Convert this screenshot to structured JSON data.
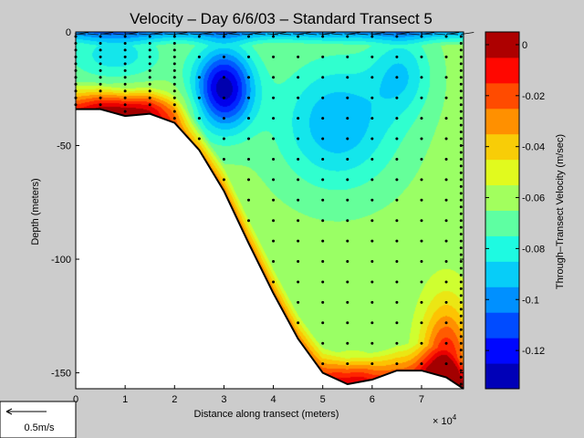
{
  "chart_data": {
    "type": "heatmap",
    "title": "Velocity – Day 6/6/03 – Standard Transect 5",
    "xlabel": "Distance along transect (meters)",
    "x_multiplier": "× 10",
    "x_multiplier_exp": "4",
    "ylabel": "Depth (meters)",
    "colorbar_label": "Through–Transect Velocity (m/sec)",
    "xlim": [
      0,
      7.85
    ],
    "ylim": [
      -157,
      0
    ],
    "xticks": [
      {
        "v": 0,
        "label": "0"
      },
      {
        "v": 1,
        "label": "1"
      },
      {
        "v": 2,
        "label": "2"
      },
      {
        "v": 3,
        "label": "3"
      },
      {
        "v": 4,
        "label": "4"
      },
      {
        "v": 5,
        "label": "5"
      },
      {
        "v": 6,
        "label": "6"
      },
      {
        "v": 7,
        "label": "7"
      }
    ],
    "yticks": [
      {
        "v": 0,
        "label": "0"
      },
      {
        "v": -50,
        "label": "-50"
      },
      {
        "v": -100,
        "label": "-100"
      },
      {
        "v": -150,
        "label": "-150"
      }
    ],
    "clim": [
      -0.135,
      0.005
    ],
    "colorbar_ticks": [
      {
        "v": 0,
        "label": "0"
      },
      {
        "v": -0.02,
        "label": "-0.02"
      },
      {
        "v": -0.04,
        "label": "-0.04"
      },
      {
        "v": -0.06,
        "label": "-0.06"
      },
      {
        "v": -0.08,
        "label": "-0.08"
      },
      {
        "v": -0.1,
        "label": "-0.1"
      },
      {
        "v": -0.12,
        "label": "-0.12"
      }
    ],
    "colormap": [
      "#00008f",
      "#0000ff",
      "#0060ff",
      "#00bfff",
      "#20ffdf",
      "#80ff80",
      "#dfff20",
      "#ffbf00",
      "#ff6000",
      "#ff0000",
      "#800000"
    ],
    "bottom_profile": [
      [
        0,
        -34
      ],
      [
        0.5,
        -34
      ],
      [
        1,
        -37
      ],
      [
        1.5,
        -36
      ],
      [
        2,
        -40
      ],
      [
        2.5,
        -52
      ],
      [
        3,
        -70
      ],
      [
        3.5,
        -93
      ],
      [
        4,
        -115
      ],
      [
        4.5,
        -135
      ],
      [
        5,
        -150
      ],
      [
        5.5,
        -155
      ],
      [
        6,
        -153
      ],
      [
        6.5,
        -149
      ],
      [
        7,
        -149
      ],
      [
        7.5,
        -152
      ],
      [
        7.85,
        -157
      ]
    ],
    "velocity_cores": [
      {
        "x": 3.0,
        "depth": -25,
        "value": -0.132,
        "sx": 0.6,
        "sy": 18
      },
      {
        "x": 5.3,
        "depth": -40,
        "value": -0.095,
        "sx": 1.2,
        "sy": 28
      },
      {
        "x": 6.6,
        "depth": -18,
        "value": -0.085,
        "sx": 0.6,
        "sy": 18
      },
      {
        "x": 0.8,
        "depth": -10,
        "value": -0.085,
        "sx": 1.0,
        "sy": 12
      }
    ],
    "velocity_anomalies": [
      {
        "x": 7.5,
        "depth": -148,
        "value": 0.055,
        "sx": 0.5,
        "sy": 28
      },
      {
        "x": 1.0,
        "depth": -34,
        "value": 0.035,
        "sx": 1.1,
        "sy": 8
      },
      {
        "x": 5.6,
        "depth": -153,
        "value": 0.025,
        "sx": 0.6,
        "sy": 10
      }
    ],
    "velocity_background": -0.062,
    "sample_profiles_x": [
      0,
      0.5,
      1,
      1.5,
      2,
      2.5,
      3,
      3.5,
      4,
      4.5,
      5,
      5.5,
      6,
      6.5,
      7,
      7.5,
      7.8
    ],
    "dense_profiles_x": [
      0,
      0.5,
      1,
      1.5,
      2,
      7.8
    ]
  },
  "scale_arrow": {
    "label": "0.5m/s"
  }
}
